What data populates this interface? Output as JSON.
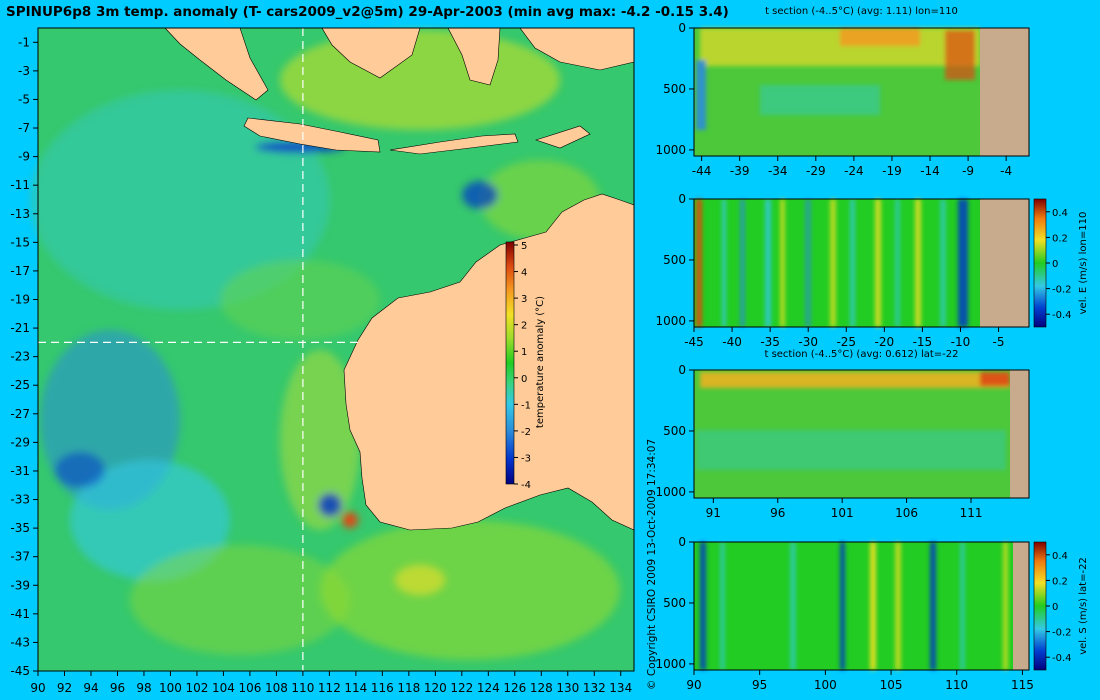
{
  "title": "SPINUP6p8 3m temp. anomaly (T- cars2009_v2@5m) 29-Apr-2003 (min avg max: -4.2 -0.15 3.4)",
  "copyright": "© Copyright CSIRO 2009  13-Oct-2009 17:34:07",
  "colors": {
    "background": "#00ccff",
    "land": "#ffcc99",
    "section_land": "#c8aa8c"
  },
  "colormap": [
    "#00007f",
    "#0033cc",
    "#2b8cd9",
    "#33c9e6",
    "#39d37b",
    "#22cc22",
    "#9bdc2a",
    "#f2e025",
    "#f59a20",
    "#dd4a12",
    "#7f0000"
  ],
  "map": {
    "chart_data": {
      "type": "heatmap",
      "xlim": [
        90,
        135
      ],
      "ylim": [
        -45,
        0
      ],
      "x_ticks": [
        "90",
        "92",
        "94",
        "96",
        "98",
        "100",
        "102",
        "104",
        "106",
        "108",
        "110",
        "112",
        "114",
        "116",
        "118",
        "120",
        "122",
        "124",
        "126",
        "128",
        "130",
        "132",
        "134"
      ],
      "y_ticks": [
        "-1",
        "-3",
        "-5",
        "-7",
        "-9",
        "-11",
        "-13",
        "-15",
        "-17",
        "-19",
        "-21",
        "-23",
        "-25",
        "-27",
        "-29",
        "-31",
        "-33",
        "-35",
        "-37",
        "-39",
        "-41",
        "-43",
        "-45"
      ],
      "section_lon": 110,
      "section_lat": -22
    },
    "colorbar": {
      "label": "temperature anomaly (°C)",
      "ticks": [
        "5",
        "4",
        "3",
        "2",
        "1",
        "0",
        "-1",
        "-2",
        "-3",
        "-4"
      ]
    }
  },
  "sections": [
    {
      "title": "t section (-4..5°C) (avg: 1.11) lon=110",
      "chart_data": {
        "type": "heatmap",
        "x_ticks": [
          "-44",
          "-39",
          "-34",
          "-29",
          "-24",
          "-19",
          "-14",
          "-9",
          "-4"
        ],
        "y_ticks": [
          "0",
          "500",
          "1000"
        ]
      }
    },
    {
      "title": "",
      "chart_data": {
        "type": "heatmap",
        "x_ticks": [
          "-45",
          "-40",
          "-35",
          "-30",
          "-25",
          "-20",
          "-15",
          "-10",
          "-5"
        ],
        "y_ticks": [
          "0",
          "500",
          "1000"
        ]
      },
      "colorbar": {
        "label": "vel. E (m/s) lon=110",
        "ticks": [
          "0.4",
          "0.2",
          "0",
          "-0.2",
          "-0.4"
        ]
      }
    },
    {
      "title": "t section (-4..5°C) (avg: 0.612) lat=-22",
      "chart_data": {
        "type": "heatmap",
        "x_ticks": [
          "91",
          "96",
          "101",
          "106",
          "111"
        ],
        "y_ticks": [
          "0",
          "500",
          "1000"
        ]
      }
    },
    {
      "title": "",
      "chart_data": {
        "type": "heatmap",
        "x_ticks": [
          "90",
          "95",
          "100",
          "105",
          "110",
          "115"
        ],
        "y_ticks": [
          "0",
          "500",
          "1000"
        ]
      },
      "colorbar": {
        "label": "vel. S (m/s) lat=-22",
        "ticks": [
          "0.4",
          "0.2",
          "0",
          "-0.2",
          "-0.4"
        ]
      }
    }
  ]
}
